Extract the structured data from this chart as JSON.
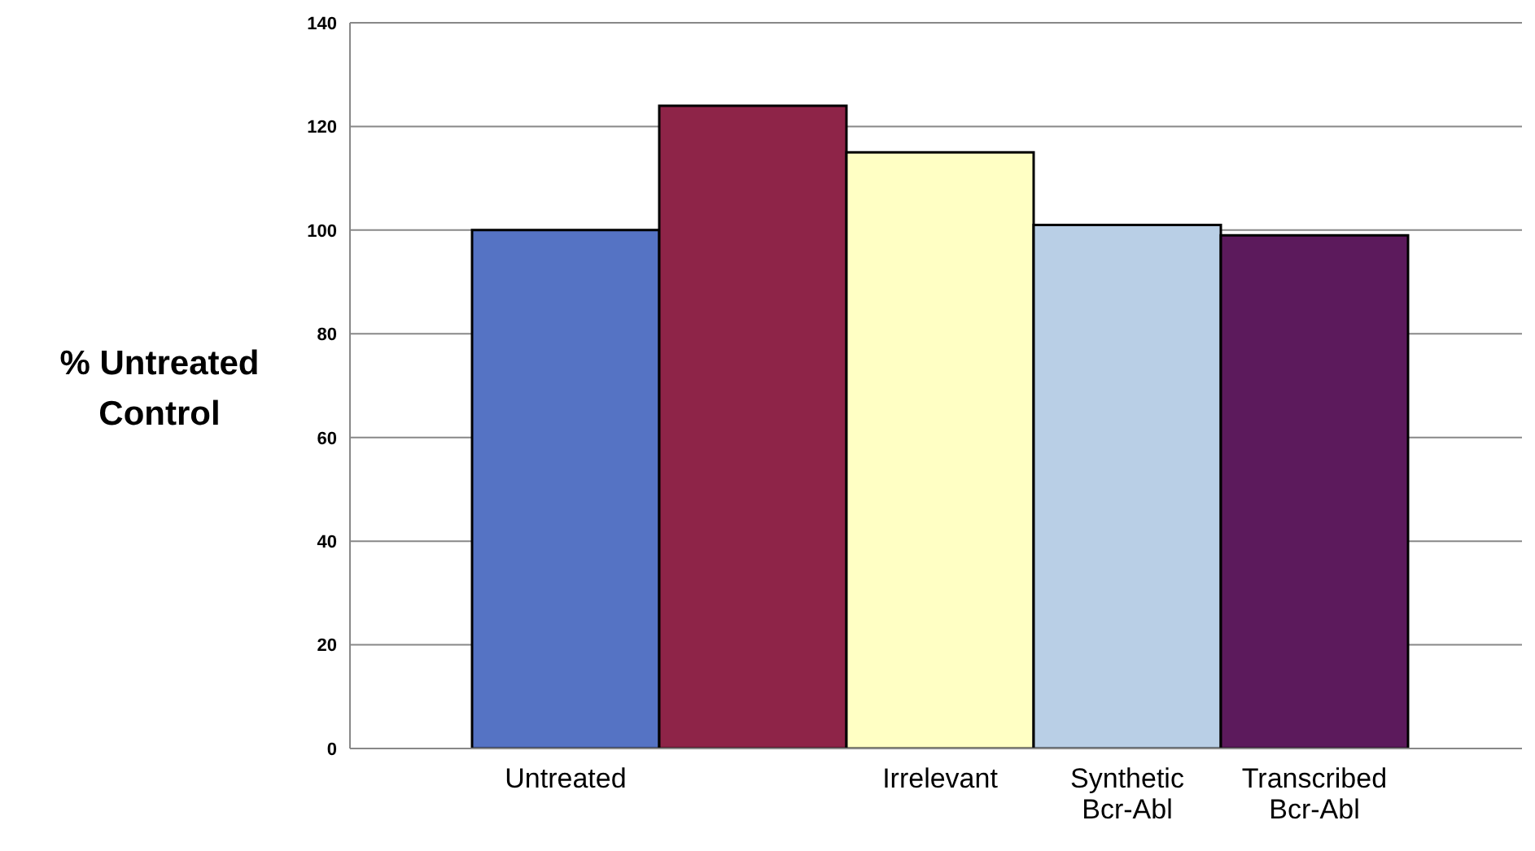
{
  "chart_data": {
    "type": "bar",
    "ylabel": "% Untreated Control",
    "categories": [
      "Untreated",
      null,
      "Irrelevant",
      "Synthetic Bcr-Abl",
      "Transcribed Bcr-Abl"
    ],
    "values": [
      100,
      124,
      115,
      101,
      99
    ],
    "colors": [
      "#5573c4",
      "#8e2448",
      "#ffffc4",
      "#b9cfe6",
      "#5c1a5c"
    ],
    "ylim": [
      0,
      140
    ],
    "yticks": [
      0,
      20,
      40,
      60,
      80,
      100,
      120,
      140
    ],
    "grid": "y"
  }
}
